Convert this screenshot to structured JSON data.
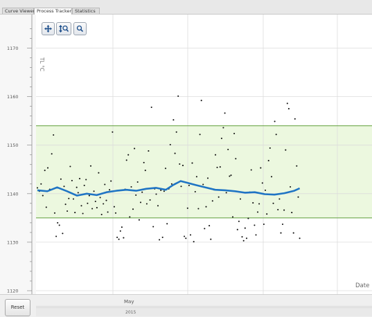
{
  "tabs": [
    {
      "label": "Curve Viewer",
      "active": false
    },
    {
      "label": "Process Tracker",
      "active": true
    },
    {
      "label": "Statistics",
      "active": false
    }
  ],
  "toolbar": {
    "pan_icon": "move-cross-icon",
    "zoom_y_icon": "vertical-zoom-icon",
    "zoom_icon": "magnifier-icon"
  },
  "reset_label": "Reset",
  "timeline": {
    "month_label": "May",
    "year_label": "2015"
  },
  "chart_data": {
    "type": "scatter",
    "ylabel": "TL °C",
    "xlabel": "Date",
    "yticks": [
      1120,
      1130,
      1140,
      1150,
      1160,
      1170
    ],
    "ylim": [
      1116,
      1174
    ],
    "control_band": {
      "lower": 1135,
      "upper": 1154
    },
    "band_color": "#ecf8df",
    "band_line_color": "#6fa84d",
    "trend_color": "#1f74c4",
    "point_color": "#111111",
    "grid": true,
    "series": [
      {
        "values": [
          [
            0,
            1141.2
          ],
          [
            0.8,
            1140.5
          ],
          [
            1.5,
            1142.0
          ],
          [
            2.2,
            1139.6
          ],
          [
            3,
            1144.8
          ],
          [
            3.6,
            1137.2
          ],
          [
            4.2,
            1145.3
          ],
          [
            5,
            1140.9
          ],
          [
            5.8,
            1148.2
          ],
          [
            6.5,
            1152.1
          ],
          [
            7,
            1136.0
          ],
          [
            7.6,
            1131.2
          ],
          [
            8.2,
            1134.0
          ],
          [
            8.9,
            1133.5
          ],
          [
            9.5,
            1143.0
          ],
          [
            10.2,
            1131.8
          ],
          [
            10.8,
            1141.5
          ],
          [
            11.4,
            1137.8
          ],
          [
            12.1,
            1136.4
          ],
          [
            12.7,
            1139.0
          ],
          [
            13.3,
            1145.6
          ],
          [
            14,
            1142.7
          ],
          [
            14.6,
            1138.9
          ],
          [
            15.2,
            1136.1
          ],
          [
            15.9,
            1141.3
          ],
          [
            16.5,
            1140.2
          ],
          [
            17.1,
            1143.1
          ],
          [
            17.8,
            1137.5
          ],
          [
            18.4,
            1135.9
          ],
          [
            19,
            1141.7
          ],
          [
            19.7,
            1142.9
          ],
          [
            20.3,
            1138.0
          ],
          [
            21,
            1139.6
          ],
          [
            21.6,
            1145.7
          ],
          [
            22.2,
            1136.9
          ],
          [
            22.9,
            1140.5
          ],
          [
            23.5,
            1138.4
          ],
          [
            24.1,
            1137.1
          ],
          [
            24.8,
            1144.3
          ],
          [
            25.4,
            1139.2
          ],
          [
            26,
            1135.7
          ],
          [
            26.7,
            1137.9
          ],
          [
            27.3,
            1141.9
          ],
          [
            27.9,
            1138.6
          ],
          [
            28.5,
            1136.2
          ],
          [
            29.2,
            1140.8
          ],
          [
            29.8,
            1142.6
          ],
          [
            30.4,
            1152.7
          ],
          [
            31.1,
            1137.3
          ],
          [
            31.7,
            1136.0
          ],
          [
            32.3,
            1131.0
          ],
          [
            33,
            1130.6
          ],
          [
            33.6,
            1132.3
          ],
          [
            34.2,
            1133.1
          ],
          [
            34.9,
            1130.9
          ],
          [
            35.5,
            1140.9
          ],
          [
            36.1,
            1146.9
          ],
          [
            36.8,
            1148.0
          ],
          [
            37.4,
            1135.2
          ],
          [
            38,
            1141.4
          ],
          [
            38.7,
            1136.8
          ],
          [
            39.3,
            1149.3
          ],
          [
            39.9,
            1139.7
          ],
          [
            40.6,
            1142.4
          ],
          [
            41.2,
            1134.6
          ],
          [
            41.8,
            1138.2
          ],
          [
            42.4,
            1140.3
          ],
          [
            43.1,
            1146.4
          ],
          [
            43.7,
            1144.8
          ],
          [
            44.3,
            1137.9
          ],
          [
            45,
            1148.8
          ],
          [
            45.6,
            1138.7
          ],
          [
            46.2,
            1157.8
          ],
          [
            46.9,
            1133.2
          ],
          [
            47.5,
            1141.0
          ],
          [
            48.1,
            1139.9
          ],
          [
            48.8,
            1137.5
          ],
          [
            49.4,
            1130.5
          ],
          [
            50,
            1140.7
          ],
          [
            50.7,
            1131.0
          ],
          [
            51.3,
            1140.5
          ],
          [
            51.9,
            1145.2
          ],
          [
            52.5,
            1133.8
          ],
          [
            53.2,
            1141.0
          ],
          [
            53.8,
            1150.1
          ],
          [
            54.4,
            1142.0
          ],
          [
            55.1,
            1155.2
          ],
          [
            55.7,
            1148.3
          ],
          [
            56.3,
            1152.7
          ],
          [
            57,
            1160.1
          ],
          [
            57.6,
            1146.1
          ],
          [
            58.2,
            1141.5
          ],
          [
            58.9,
            1145.8
          ],
          [
            59.5,
            1131.2
          ],
          [
            60.1,
            1130.8
          ],
          [
            60.8,
            1137.0
          ],
          [
            61.4,
            1141.7
          ],
          [
            62,
            1131.5
          ],
          [
            62.7,
            1146.3
          ],
          [
            63.3,
            1130.1
          ],
          [
            63.9,
            1140.4
          ],
          [
            64.5,
            1143.5
          ],
          [
            65.2,
            1136.9
          ],
          [
            65.8,
            1152.2
          ],
          [
            66.4,
            1159.2
          ],
          [
            67.1,
            1141.9
          ],
          [
            67.7,
            1132.8
          ],
          [
            68.3,
            1137.3
          ],
          [
            69,
            1143.2
          ],
          [
            69.6,
            1133.4
          ],
          [
            70.2,
            1130.6
          ],
          [
            70.9,
            1138.5
          ],
          [
            71.5,
            1140.8
          ],
          [
            72.1,
            1148.0
          ],
          [
            72.8,
            1145.4
          ],
          [
            73.4,
            1139.3
          ],
          [
            74,
            1145.5
          ],
          [
            74.6,
            1151.4
          ],
          [
            75.3,
            1153.6
          ],
          [
            75.9,
            1156.6
          ],
          [
            76.5,
            1140.2
          ],
          [
            77.2,
            1149.1
          ],
          [
            77.8,
            1143.6
          ],
          [
            78.4,
            1143.8
          ],
          [
            79.1,
            1135.2
          ],
          [
            79.7,
            1152.4
          ],
          [
            80.3,
            1147.2
          ],
          [
            81,
            1132.6
          ],
          [
            81.6,
            1134.3
          ],
          [
            82.2,
            1138.9
          ],
          [
            82.9,
            1131.1
          ],
          [
            83.5,
            1130.3
          ],
          [
            84.1,
            1132.9
          ],
          [
            84.7,
            1130.8
          ],
          [
            85.4,
            1134.9
          ],
          [
            86,
            1140.3
          ],
          [
            86.6,
            1144.9
          ],
          [
            87.3,
            1138.1
          ],
          [
            87.9,
            1133.5
          ],
          [
            88.5,
            1131.5
          ],
          [
            89.2,
            1136.2
          ],
          [
            89.8,
            1137.9
          ],
          [
            90.4,
            1145.3
          ],
          [
            91.1,
            1142.2
          ],
          [
            91.7,
            1133.7
          ],
          [
            92.3,
            1140.7
          ],
          [
            92.9,
            1135.8
          ],
          [
            93.6,
            1146.8
          ],
          [
            94.2,
            1149.4
          ],
          [
            94.8,
            1143.5
          ],
          [
            95.5,
            1138.0
          ],
          [
            96.1,
            1154.9
          ],
          [
            96.7,
            1152.2
          ],
          [
            97.4,
            1136.7
          ],
          [
            98,
            1138.9
          ],
          [
            98.6,
            1131.9
          ],
          [
            99.3,
            1133.7
          ],
          [
            99.9,
            1136.6
          ],
          [
            100.5,
            1149.0
          ],
          [
            101.2,
            1158.6
          ],
          [
            101.8,
            1157.5
          ],
          [
            102.4,
            1141.4
          ],
          [
            103,
            1136.1
          ],
          [
            103.7,
            1131.9
          ],
          [
            104.3,
            1155.4
          ],
          [
            105,
            1145.7
          ],
          [
            105.6,
            1139.3
          ],
          [
            106.2,
            1130.8
          ]
        ]
      }
    ],
    "trend": [
      [
        0,
        1140.7
      ],
      [
        4,
        1140.5
      ],
      [
        8,
        1141.3
      ],
      [
        12,
        1140.5
      ],
      [
        16,
        1139.6
      ],
      [
        20,
        1140.0
      ],
      [
        24,
        1139.7
      ],
      [
        28,
        1140.3
      ],
      [
        32,
        1140.6
      ],
      [
        36,
        1140.8
      ],
      [
        40,
        1140.6
      ],
      [
        44,
        1141.0
      ],
      [
        48,
        1141.2
      ],
      [
        52,
        1140.8
      ],
      [
        55,
        1141.8
      ],
      [
        58,
        1142.6
      ],
      [
        61,
        1142.2
      ],
      [
        64,
        1141.8
      ],
      [
        68,
        1141.3
      ],
      [
        72,
        1140.8
      ],
      [
        76,
        1140.7
      ],
      [
        80,
        1140.5
      ],
      [
        84,
        1140.2
      ],
      [
        88,
        1140.3
      ],
      [
        92,
        1139.9
      ],
      [
        96,
        1139.8
      ],
      [
        100,
        1140.1
      ],
      [
        104,
        1140.6
      ],
      [
        106.2,
        1141.1
      ]
    ],
    "x_range": [
      0,
      130
    ]
  }
}
